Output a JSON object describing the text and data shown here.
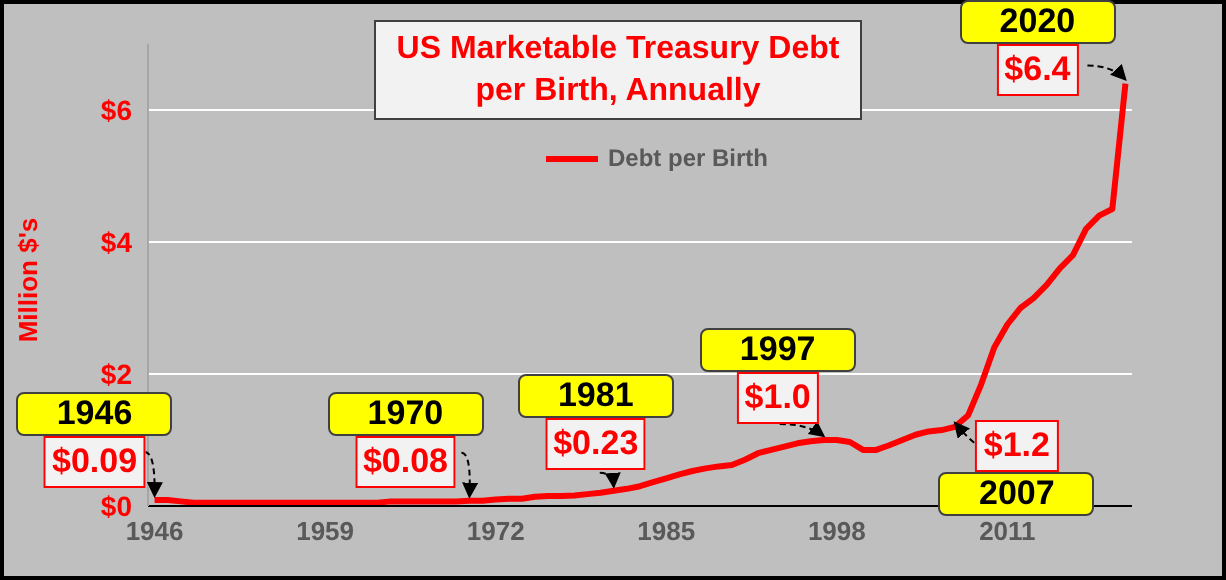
{
  "chart_data": {
    "type": "line",
    "title": "US Marketable Treasury Debt per Birth, Annually",
    "ylabel": "Million $'s",
    "x": [
      1946,
      1947,
      1948,
      1949,
      1950,
      1951,
      1952,
      1953,
      1954,
      1955,
      1956,
      1957,
      1958,
      1959,
      1960,
      1961,
      1962,
      1963,
      1964,
      1965,
      1966,
      1967,
      1968,
      1969,
      1970,
      1971,
      1972,
      1973,
      1974,
      1975,
      1976,
      1977,
      1978,
      1979,
      1980,
      1981,
      1982,
      1983,
      1984,
      1985,
      1986,
      1987,
      1988,
      1989,
      1990,
      1991,
      1992,
      1993,
      1994,
      1995,
      1996,
      1997,
      1998,
      1999,
      2000,
      2001,
      2002,
      2003,
      2004,
      2005,
      2006,
      2007,
      2008,
      2009,
      2010,
      2011,
      2012,
      2013,
      2014,
      2015,
      2016,
      2017,
      2018,
      2019,
      2020
    ],
    "series": [
      {
        "name": "Debt per Birth",
        "color": "#ff0000",
        "values": [
          0.09,
          0.09,
          0.07,
          0.05,
          0.05,
          0.05,
          0.05,
          0.05,
          0.05,
          0.05,
          0.05,
          0.05,
          0.05,
          0.05,
          0.05,
          0.05,
          0.05,
          0.05,
          0.07,
          0.07,
          0.07,
          0.07,
          0.07,
          0.07,
          0.08,
          0.08,
          0.1,
          0.11,
          0.11,
          0.14,
          0.15,
          0.15,
          0.16,
          0.18,
          0.2,
          0.23,
          0.26,
          0.3,
          0.36,
          0.42,
          0.48,
          0.53,
          0.57,
          0.6,
          0.62,
          0.7,
          0.8,
          0.85,
          0.9,
          0.95,
          0.98,
          1.0,
          1.0,
          0.97,
          0.85,
          0.85,
          0.92,
          1.0,
          1.08,
          1.13,
          1.15,
          1.2,
          1.37,
          1.84,
          2.4,
          2.75,
          3.0,
          3.15,
          3.35,
          3.6,
          3.8,
          4.2,
          4.4,
          4.5,
          6.4
        ]
      }
    ],
    "xlim": [
      1945.5,
      2020.5
    ],
    "xticks": [
      1946,
      1959,
      1972,
      1985,
      1998,
      2011
    ],
    "ylim": [
      0,
      7
    ],
    "yticks": [
      {
        "value": 0,
        "label": "$0"
      },
      {
        "value": 2,
        "label": "$2"
      },
      {
        "value": 4,
        "label": "$4"
      },
      {
        "value": 6,
        "label": "$6"
      }
    ],
    "grid": "y",
    "legend": "top",
    "annotations": [
      {
        "text": "1946",
        "x": 1946,
        "y": 0.09
      },
      {
        "text": "$0.09",
        "x": 1946,
        "y": 0.09
      },
      {
        "text": "1970",
        "x": 1970,
        "y": 0.08
      },
      {
        "text": "$0.08",
        "x": 1970,
        "y": 0.08
      },
      {
        "text": "1981",
        "x": 1981,
        "y": 0.23
      },
      {
        "text": "$0.23",
        "x": 1981,
        "y": 0.23
      },
      {
        "text": "1997",
        "x": 1997,
        "y": 1.0
      },
      {
        "text": "$1.0",
        "x": 1997,
        "y": 1.0
      },
      {
        "text": "2007",
        "x": 2007,
        "y": 1.2
      },
      {
        "text": "$1.2",
        "x": 2007,
        "y": 1.2
      },
      {
        "text": "2020",
        "x": 2020,
        "y": 6.4
      },
      {
        "text": "$6.4",
        "x": 2020,
        "y": 6.4
      }
    ]
  }
}
